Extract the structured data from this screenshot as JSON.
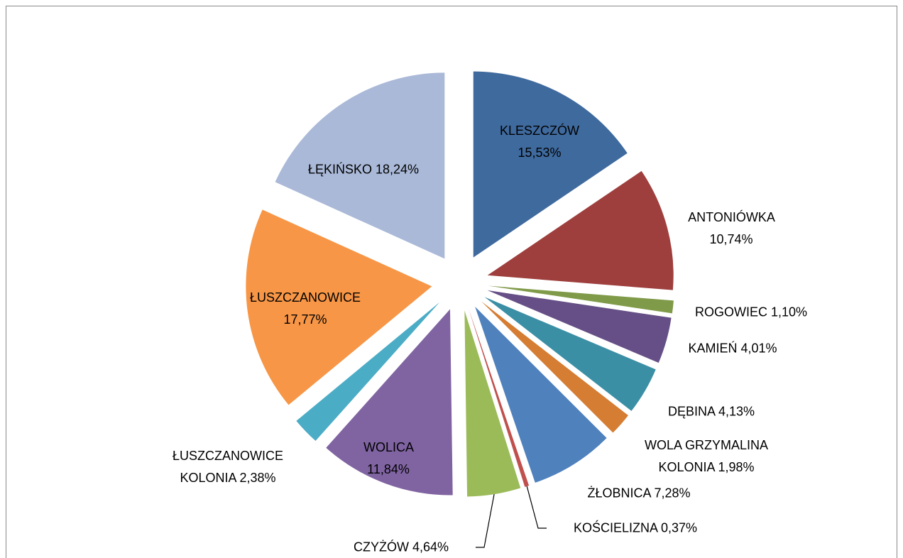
{
  "chart_data": {
    "type": "pie",
    "categories": [
      "KLESZCZÓW",
      "ANTONIÓWKA",
      "ROGOWIEC",
      "KAMIEŃ",
      "DĘBINA",
      "WOLA GRZYMALINA KOLONIA",
      "ŻŁOBNICA",
      "KOŚCIELIZNA",
      "CZYŻÓW",
      "WOLICA",
      "ŁUSZCZANOWICE KOLONIA",
      "ŁUSZCZANOWICE",
      "ŁĘKIŃSKO"
    ],
    "values": [
      15.53,
      10.74,
      1.1,
      4.01,
      4.13,
      1.98,
      7.28,
      0.37,
      4.64,
      11.84,
      2.38,
      17.77,
      18.24
    ],
    "value_labels": [
      "15,53%",
      "10,74%",
      "1,10%",
      "4,01%",
      "4,13%",
      "1,98%",
      "7,28%",
      "0,37%",
      "4,64%",
      "11,84%",
      "2,38%",
      "17,77%",
      "18,24%"
    ],
    "colors": [
      "#3f6a9e",
      "#9e3f3d",
      "#7f9a48",
      "#664f86",
      "#3b8fa5",
      "#d57d33",
      "#4f81bd",
      "#c0504d",
      "#9bbb59",
      "#8064a2",
      "#4bacc6",
      "#f79646",
      "#aab9d8"
    ]
  }
}
